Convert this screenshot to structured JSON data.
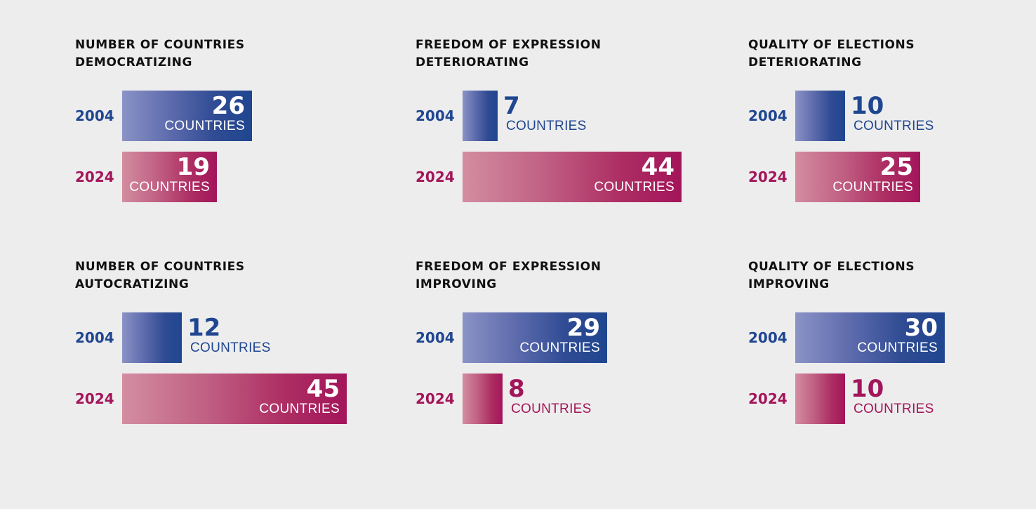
{
  "colors": {
    "series_2004": "#1f4690",
    "series_2024": "#a3155a",
    "title": "#111111",
    "background": "#ededed"
  },
  "chart_data": [
    {
      "type": "bar",
      "orientation": "horizontal",
      "title_lines": [
        "NUMBER OF COUNTRIES",
        "DEMOCRATIZING"
      ],
      "categories": [
        "2004",
        "2024"
      ],
      "values": [
        26,
        19
      ],
      "unit": "COUNTRIES"
    },
    {
      "type": "bar",
      "orientation": "horizontal",
      "title_lines": [
        "FREEDOM OF EXPRESSION",
        "DETERIORATING"
      ],
      "categories": [
        "2004",
        "2024"
      ],
      "values": [
        7,
        44
      ],
      "unit": "COUNTRIES"
    },
    {
      "type": "bar",
      "orientation": "horizontal",
      "title_lines": [
        "QUALITY OF ELECTIONS",
        "DETERIORATING"
      ],
      "categories": [
        "2004",
        "2024"
      ],
      "values": [
        10,
        25
      ],
      "unit": "COUNTRIES"
    },
    {
      "type": "bar",
      "orientation": "horizontal",
      "title_lines": [
        "NUMBER OF COUNTRIES",
        "AUTOCRATIZING"
      ],
      "categories": [
        "2004",
        "2024"
      ],
      "values": [
        12,
        45
      ],
      "unit": "COUNTRIES"
    },
    {
      "type": "bar",
      "orientation": "horizontal",
      "title_lines": [
        "FREEDOM OF EXPRESSION",
        "IMPROVING"
      ],
      "categories": [
        "2004",
        "2024"
      ],
      "values": [
        29,
        8
      ],
      "unit": "COUNTRIES"
    },
    {
      "type": "bar",
      "orientation": "horizontal",
      "title_lines": [
        "QUALITY OF ELECTIONS",
        "IMPROVING"
      ],
      "categories": [
        "2004",
        "2024"
      ],
      "values": [
        30,
        10
      ],
      "unit": "COUNTRIES"
    }
  ]
}
